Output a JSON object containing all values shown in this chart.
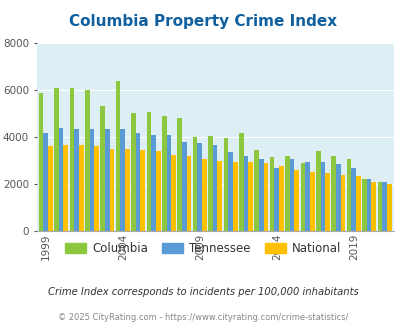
{
  "title": "Columbia Property Crime Index",
  "title_color": "#1060a0",
  "title_fontsize": 11,
  "years": [
    1999,
    2000,
    2001,
    2002,
    2003,
    2004,
    2005,
    2006,
    2007,
    2008,
    2009,
    2010,
    2011,
    2012,
    2013,
    2014,
    2015,
    2016,
    2017,
    2018,
    2019,
    2020,
    2021
  ],
  "columbia": [
    5850,
    6100,
    6100,
    6000,
    5300,
    6400,
    5000,
    5050,
    4900,
    4800,
    4000,
    4050,
    3950,
    4150,
    3450,
    3150,
    3200,
    2900,
    3400,
    3200,
    3050,
    2200,
    2100
  ],
  "tennessee": [
    4150,
    4400,
    4350,
    4350,
    4350,
    4350,
    4150,
    4100,
    4100,
    3800,
    3750,
    3650,
    3350,
    3200,
    3050,
    2700,
    3050,
    2950,
    2950,
    2850,
    2700,
    2200,
    2100
  ],
  "national": [
    3600,
    3650,
    3650,
    3600,
    3500,
    3480,
    3450,
    3400,
    3250,
    3200,
    3050,
    2960,
    2950,
    2930,
    2900,
    2750,
    2600,
    2500,
    2480,
    2400,
    2350,
    2100,
    1980
  ],
  "columbia_color": "#8dc63f",
  "tennessee_color": "#5b9bd5",
  "national_color": "#ffc000",
  "bg_color": "#ddeef5",
  "ylim": [
    0,
    8000
  ],
  "yticks": [
    0,
    2000,
    4000,
    6000,
    8000
  ],
  "xtick_years": [
    1999,
    2004,
    2009,
    2014,
    2019
  ],
  "legend_labels": [
    "Columbia",
    "Tennessee",
    "National"
  ],
  "footnote1": "Crime Index corresponds to incidents per 100,000 inhabitants",
  "footnote2": "© 2025 CityRating.com - https://www.cityrating.com/crime-statistics/",
  "footnote1_color": "#333333",
  "footnote2_color": "#888888"
}
